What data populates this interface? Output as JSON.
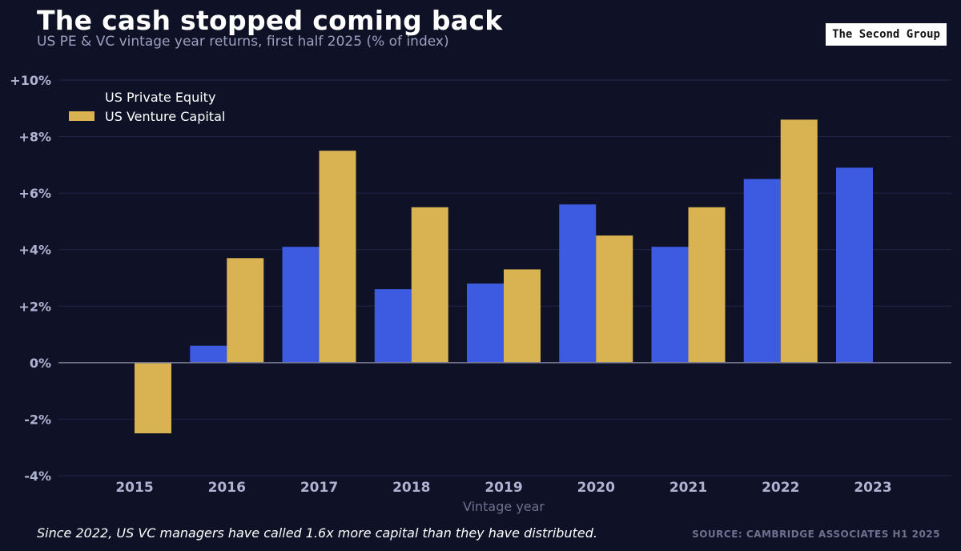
{
  "header": {
    "title": "The cash stopped coming back",
    "subtitle": "US PE & VC vintage year returns, first half 2025 (% of index)",
    "brand": "The Second Group"
  },
  "footer": {
    "note": "Since 2022, US VC managers have called 1.6x more capital than they have distributed.",
    "source": "SOURCE: CAMBRIDGE ASSOCIATES H1 2025"
  },
  "colors": {
    "background": "#0f1126",
    "pe": "#3d5be0",
    "vc": "#d9b352",
    "grid": "#23264a",
    "zero_line": "#7a7e99",
    "tick_text": "#aeb3d1",
    "xlabel_text": "#6d7190"
  },
  "chart_data": {
    "type": "bar",
    "categories": [
      "2015",
      "2016",
      "2017",
      "2018",
      "2019",
      "2020",
      "2021",
      "2022",
      "2023"
    ],
    "series": [
      {
        "name": "US Private Equity",
        "values": [
          null,
          0.6,
          4.1,
          2.6,
          2.8,
          5.6,
          4.1,
          6.5,
          6.9
        ]
      },
      {
        "name": "US Venture Capital",
        "values": [
          -2.5,
          3.7,
          7.5,
          5.5,
          3.3,
          4.5,
          5.5,
          8.6,
          null
        ]
      }
    ],
    "xlabel": "Vintage year",
    "ylabel": "",
    "ylim": [
      -4,
      10
    ],
    "yticks": [
      -4,
      -2,
      0,
      2,
      4,
      6,
      8,
      10
    ],
    "ytick_labels": [
      "-4%",
      "-2%",
      "0%",
      "+2%",
      "+4%",
      "+6%",
      "+8%",
      "+10%"
    ],
    "grid": true,
    "legend": "top-left"
  }
}
